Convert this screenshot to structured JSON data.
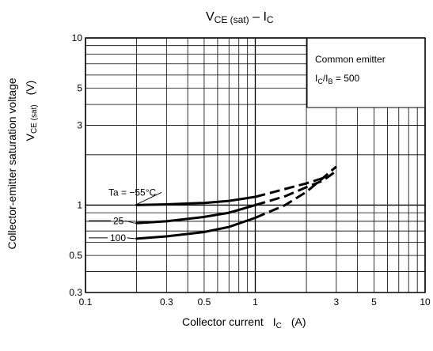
{
  "chart_data": {
    "type": "line",
    "title": {
      "main": "V",
      "main_sub": "CE (sat)",
      "dash": " – I",
      "dash_sub": "C"
    },
    "xlabel": {
      "text": "Collector current",
      "symbol": "I",
      "symbol_sub": "C",
      "unit": "(A)"
    },
    "ylabel": {
      "line1": "Collector-emitter saturation voltage",
      "symbol": "V",
      "symbol_sub": "CE (sat)",
      "unit": "(V)"
    },
    "x_scale": "log",
    "y_scale": "log",
    "xlim": [
      0.1,
      10
    ],
    "ylim": [
      0.3,
      10
    ],
    "x_ticks": [
      {
        "v": 0.1,
        "label": "0.1"
      },
      {
        "v": 0.3,
        "label": "0.3"
      },
      {
        "v": 0.5,
        "label": "0.5"
      },
      {
        "v": 1,
        "label": "1"
      },
      {
        "v": 3,
        "label": "3"
      },
      {
        "v": 5,
        "label": "5"
      },
      {
        "v": 10,
        "label": "10"
      }
    ],
    "y_ticks": [
      {
        "v": 0.3,
        "label": "0.3"
      },
      {
        "v": 0.5,
        "label": "0.5"
      },
      {
        "v": 1,
        "label": "1"
      },
      {
        "v": 3,
        "label": "3"
      },
      {
        "v": 5,
        "label": "5"
      },
      {
        "v": 10,
        "label": "10"
      }
    ],
    "grid": true,
    "conditions_box": {
      "line1": "Common emitter",
      "line2_a": "I",
      "line2_sub": "C",
      "line2_b": "/I",
      "line2_sub2": "B",
      "line2_c": " = 500"
    },
    "series": [
      {
        "name": "Ta = −55°C",
        "solid": [
          [
            0.2,
            1.0
          ],
          [
            0.3,
            1.01
          ],
          [
            0.5,
            1.03
          ],
          [
            0.7,
            1.06
          ],
          [
            1.0,
            1.12
          ]
        ],
        "dashed": [
          [
            1.0,
            1.12
          ],
          [
            1.5,
            1.25
          ],
          [
            2.0,
            1.35
          ],
          [
            2.5,
            1.45
          ]
        ]
      },
      {
        "name": "25",
        "solid": [
          [
            0.2,
            0.78
          ],
          [
            0.3,
            0.8
          ],
          [
            0.5,
            0.85
          ],
          [
            0.7,
            0.9
          ],
          [
            1.0,
            1.0
          ]
        ],
        "dashed": [
          [
            1.0,
            1.0
          ],
          [
            1.5,
            1.13
          ],
          [
            2.0,
            1.28
          ],
          [
            2.5,
            1.4
          ],
          [
            3.0,
            1.6
          ]
        ]
      },
      {
        "name": "100",
        "solid": [
          [
            0.2,
            0.63
          ],
          [
            0.3,
            0.65
          ],
          [
            0.5,
            0.69
          ],
          [
            0.7,
            0.74
          ],
          [
            1.0,
            0.84
          ]
        ],
        "dashed": [
          [
            1.0,
            0.84
          ],
          [
            1.5,
            1.0
          ],
          [
            2.0,
            1.2
          ],
          [
            2.5,
            1.45
          ],
          [
            3.0,
            1.7
          ]
        ]
      }
    ]
  }
}
